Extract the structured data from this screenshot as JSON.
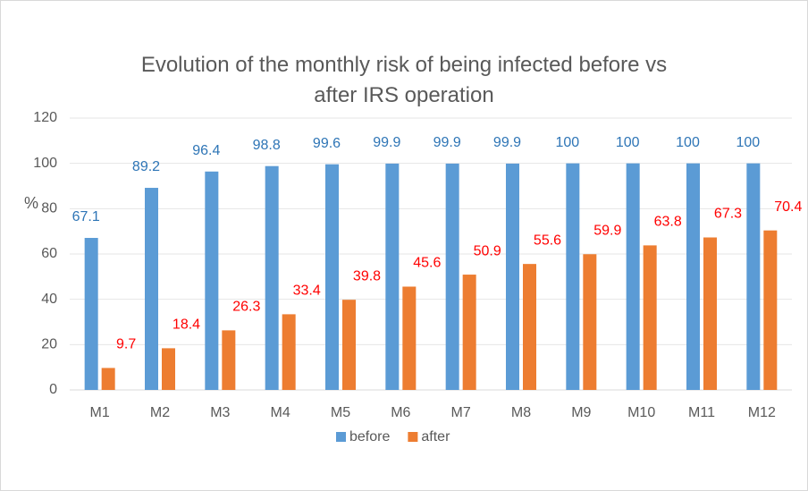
{
  "chart_data": {
    "type": "bar",
    "title": "Evolution of the monthly risk of being infected before vs after IRS operation",
    "ylabel": "%",
    "categories": [
      "M1",
      "M2",
      "M3",
      "M4",
      "M5",
      "M6",
      "M7",
      "M8",
      "M9",
      "M10",
      "M11",
      "M12"
    ],
    "series": [
      {
        "name": "before",
        "color": "#5b9bd5",
        "label_color": "#2e75b6",
        "values": [
          67.1,
          89.2,
          96.4,
          98.8,
          99.6,
          99.9,
          99.9,
          99.9,
          100,
          100,
          100,
          100
        ]
      },
      {
        "name": "after",
        "color": "#ed7d31",
        "label_color": "#ff0000",
        "values": [
          9.7,
          18.4,
          26.3,
          33.4,
          39.8,
          45.6,
          50.9,
          55.6,
          59.9,
          63.8,
          67.3,
          70.4
        ]
      }
    ],
    "ylim": [
      0,
      120
    ],
    "yticks": [
      0,
      20,
      40,
      60,
      80,
      100,
      120
    ],
    "grid": true,
    "legend": "bottom"
  }
}
